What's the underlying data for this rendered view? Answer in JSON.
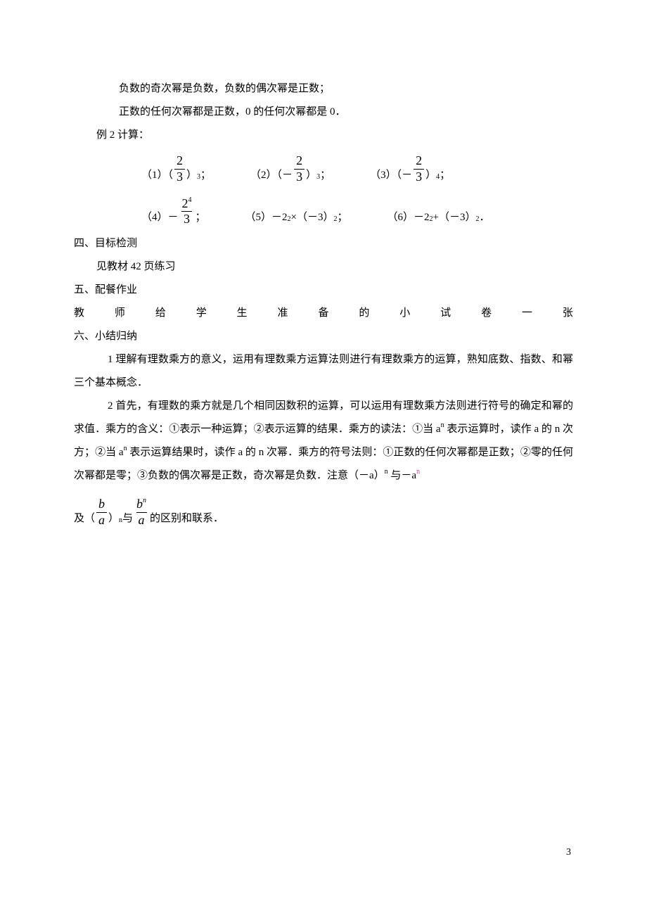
{
  "lines": {
    "l1": "负数的奇次幂是负数，负数的偶次幂是正数；",
    "l2": "正数的任何次幂都是正数，0 的任何次幂都是 0．",
    "ex2_label": "例 2 ",
    "ex2_title": "计算：",
    "eq1_pre": "（1）（",
    "eq1_post": "）",
    "eq1_exp": "3",
    "eq1_semicolon": "；",
    "eq2_pre": "（2）（－",
    "eq2_post": "）",
    "eq2_exp": "3",
    "eq3_pre": "（3）（－",
    "eq3_post": "）",
    "eq3_exp": "4",
    "eq4_pre": "（4）－",
    "eq4_suffix": "；",
    "eq5": "（5）－2",
    "eq5_exp": "2",
    "eq5_mid": "×（－3）",
    "eq5_exp2": "2",
    "eq5_tail": "；",
    "eq6": "（6）－2",
    "eq6_exp": "2",
    "eq6_plus": "+（－3）",
    "eq6_exp2": "2",
    "eq6_end": "．",
    "frac23_num": "2",
    "frac23_den": "3",
    "frac24_num_a": "2",
    "frac24_num_exp": "4",
    "frac24_den": "3",
    "sec4": "四、目标检测",
    "sec4_body": "见教材 42 页练习",
    "sec5": "五、配餐作业",
    "sec5_body_chars": [
      "教",
      "师",
      "给",
      "学",
      "生",
      "准",
      "备",
      "的",
      "小",
      "试",
      "卷",
      "一",
      "张"
    ],
    "sec6": "六、小结归纳",
    "p1": "1 理解有理数乘方的意义，运用有理数乘方运算法则进行有理数乘方的运算，熟知底数、指数、和幂三个基本概念．",
    "p2a": "2 首先，有理数的乘方就是几个相同因数积的运算，可以运用有理数乘方法则进行符号的确定和幂的求值．乘方的含义：①表示一种运算；②表示运算的结果．乘方的读法：①当 a",
    "p2a_sup": "n",
    "p2a_tail": " 表示运算时，读作 a 的 n 次方；②当 a",
    "p2b_sup": "n",
    "p2b_tail": " 表示运算结果时，读作 a 的 n 次幂．乘方的符号法则：①正数的任何次幂都是正数；②零的任何次幂都是零；③负数的偶次幂是正数，奇次幂是负数．注意（－a）",
    "p2c_sup": "n",
    "p2c_tail": " 与－a",
    "p2d_sup": "n",
    "p3_pre": "及（",
    "p3_mid": "）",
    "p3_sup": "n",
    "p3_mid2": " 与 ",
    "p3_end": " 的区别和联系．",
    "frac_ba_num": "b",
    "frac_ba_den": "a",
    "frac_bna_num": "b",
    "frac_bna_num_sup": "n",
    "frac_bna_den": "a",
    "page_no": "3"
  },
  "colors": {
    "text": "#000000",
    "bg": "#ffffff"
  },
  "font": {
    "body_pt": 11,
    "sup_pt": 8,
    "frac_pt": 13
  }
}
